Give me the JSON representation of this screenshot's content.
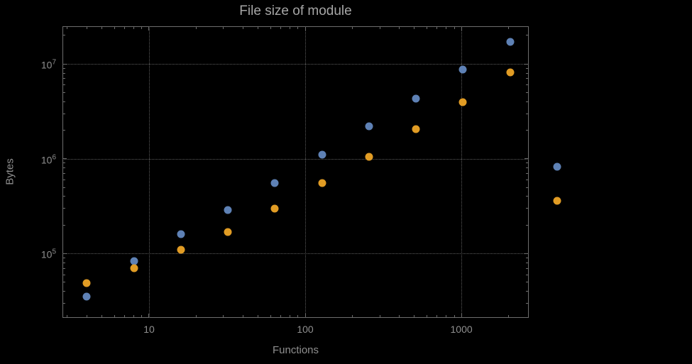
{
  "chart_data": {
    "type": "scatter",
    "title": "File size of module",
    "xlabel": "Functions",
    "ylabel": "Bytes",
    "x_scale": "log",
    "y_scale": "log",
    "xlim": [
      2.79,
      2700
    ],
    "ylim": [
      21000,
      25000000
    ],
    "grid": "dotted",
    "legend": "none",
    "background": "#000000",
    "frame_color": "#6d6d6d",
    "x_ticks": [
      {
        "value": 10,
        "label": "10"
      },
      {
        "value": 100,
        "label": "100"
      },
      {
        "value": 1000,
        "label": "1000"
      }
    ],
    "y_ticks": [
      {
        "value": 100000,
        "base": "10",
        "exponent": "5"
      },
      {
        "value": 1000000,
        "base": "10",
        "exponent": "6"
      },
      {
        "value": 10000000,
        "base": "10",
        "exponent": "7"
      }
    ],
    "series": [
      {
        "name": "blue",
        "color": "#5E81B5",
        "points": [
          [
            4,
            35000
          ],
          [
            8,
            83000
          ],
          [
            16,
            160000
          ],
          [
            32,
            290000
          ],
          [
            64,
            550000
          ],
          [
            128,
            1100000
          ],
          [
            256,
            2200000
          ],
          [
            512,
            4300000
          ],
          [
            1024,
            8800000
          ],
          [
            2048,
            17000000
          ],
          [
            4096,
            820000
          ]
        ]
      },
      {
        "name": "orange",
        "color": "#E19C24",
        "points": [
          [
            4,
            49000
          ],
          [
            8,
            70000
          ],
          [
            16,
            110000
          ],
          [
            32,
            170000
          ],
          [
            64,
            300000
          ],
          [
            128,
            550000
          ],
          [
            256,
            1050000
          ],
          [
            512,
            2050000
          ],
          [
            1024,
            3950000
          ],
          [
            2048,
            8100000
          ],
          [
            4096,
            360000
          ]
        ]
      }
    ]
  }
}
